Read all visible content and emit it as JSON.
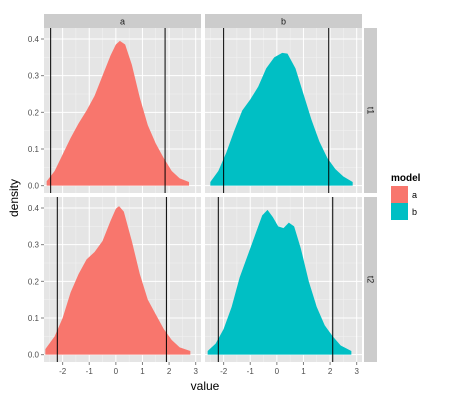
{
  "chart_data": {
    "type": "area",
    "xlabel": "value",
    "ylabel": "density",
    "xlim": [
      -2.7,
      3.2
    ],
    "ylim": [
      -0.02,
      0.43
    ],
    "x_ticks": [
      -2,
      -1,
      0,
      1,
      2,
      3
    ],
    "y_ticks": [
      0.0,
      0.1,
      0.2,
      0.3,
      0.4
    ],
    "x_tick_labels": [
      "-2",
      "-1",
      "0",
      "1",
      "2",
      "3"
    ],
    "y_tick_labels": [
      "0.0",
      "0.1",
      "0.2",
      "0.3",
      "0.4"
    ],
    "grid": true,
    "column_facets": [
      "a",
      "b"
    ],
    "row_facets": [
      "t1",
      "t2"
    ],
    "legend": {
      "title": "model",
      "position": "right",
      "entries": [
        {
          "label": "a",
          "color": "#F8766D"
        },
        {
          "label": "b",
          "color": "#00BFC4"
        }
      ]
    },
    "panels": [
      {
        "col": "a",
        "row": "t1",
        "model": "a",
        "color": "#F8766D",
        "vlines": [
          -2.45,
          1.85
        ],
        "series": [
          {
            "x": -2.6,
            "y": 0.012
          },
          {
            "x": -2.3,
            "y": 0.04
          },
          {
            "x": -2.0,
            "y": 0.085
          },
          {
            "x": -1.7,
            "y": 0.13
          },
          {
            "x": -1.4,
            "y": 0.17
          },
          {
            "x": -1.1,
            "y": 0.205
          },
          {
            "x": -0.8,
            "y": 0.245
          },
          {
            "x": -0.5,
            "y": 0.3
          },
          {
            "x": -0.2,
            "y": 0.355
          },
          {
            "x": 0.0,
            "y": 0.385
          },
          {
            "x": 0.15,
            "y": 0.395
          },
          {
            "x": 0.35,
            "y": 0.385
          },
          {
            "x": 0.6,
            "y": 0.33
          },
          {
            "x": 0.9,
            "y": 0.24
          },
          {
            "x": 1.2,
            "y": 0.165
          },
          {
            "x": 1.5,
            "y": 0.115
          },
          {
            "x": 1.8,
            "y": 0.075
          },
          {
            "x": 2.1,
            "y": 0.04
          },
          {
            "x": 2.4,
            "y": 0.02
          },
          {
            "x": 2.75,
            "y": 0.01
          }
        ]
      },
      {
        "col": "b",
        "row": "t1",
        "model": "b",
        "color": "#00BFC4",
        "vlines": [
          -2.0,
          1.95
        ],
        "series": [
          {
            "x": -2.5,
            "y": 0.01
          },
          {
            "x": -2.2,
            "y": 0.04
          },
          {
            "x": -1.9,
            "y": 0.09
          },
          {
            "x": -1.6,
            "y": 0.15
          },
          {
            "x": -1.3,
            "y": 0.205
          },
          {
            "x": -1.0,
            "y": 0.235
          },
          {
            "x": -0.7,
            "y": 0.27
          },
          {
            "x": -0.4,
            "y": 0.32
          },
          {
            "x": -0.1,
            "y": 0.35
          },
          {
            "x": 0.2,
            "y": 0.362
          },
          {
            "x": 0.4,
            "y": 0.36
          },
          {
            "x": 0.7,
            "y": 0.32
          },
          {
            "x": 1.0,
            "y": 0.25
          },
          {
            "x": 1.3,
            "y": 0.18
          },
          {
            "x": 1.6,
            "y": 0.12
          },
          {
            "x": 1.9,
            "y": 0.075
          },
          {
            "x": 2.2,
            "y": 0.045
          },
          {
            "x": 2.5,
            "y": 0.025
          },
          {
            "x": 2.85,
            "y": 0.01
          }
        ]
      },
      {
        "col": "a",
        "row": "t2",
        "model": "a",
        "color": "#F8766D",
        "vlines": [
          -2.2,
          1.9
        ],
        "series": [
          {
            "x": -2.65,
            "y": 0.015
          },
          {
            "x": -2.3,
            "y": 0.05
          },
          {
            "x": -2.0,
            "y": 0.1
          },
          {
            "x": -1.7,
            "y": 0.17
          },
          {
            "x": -1.4,
            "y": 0.22
          },
          {
            "x": -1.1,
            "y": 0.26
          },
          {
            "x": -0.8,
            "y": 0.28
          },
          {
            "x": -0.5,
            "y": 0.31
          },
          {
            "x": -0.2,
            "y": 0.365
          },
          {
            "x": 0.0,
            "y": 0.398
          },
          {
            "x": 0.12,
            "y": 0.405
          },
          {
            "x": 0.3,
            "y": 0.39
          },
          {
            "x": 0.6,
            "y": 0.31
          },
          {
            "x": 0.9,
            "y": 0.22
          },
          {
            "x": 1.2,
            "y": 0.15
          },
          {
            "x": 1.5,
            "y": 0.11
          },
          {
            "x": 1.8,
            "y": 0.07
          },
          {
            "x": 2.1,
            "y": 0.04
          },
          {
            "x": 2.4,
            "y": 0.02
          },
          {
            "x": 2.8,
            "y": 0.01
          }
        ]
      },
      {
        "col": "b",
        "row": "t2",
        "model": "b",
        "color": "#00BFC4",
        "vlines": [
          -2.2,
          2.1
        ],
        "series": [
          {
            "x": -2.6,
            "y": 0.01
          },
          {
            "x": -2.3,
            "y": 0.03
          },
          {
            "x": -2.0,
            "y": 0.07
          },
          {
            "x": -1.7,
            "y": 0.13
          },
          {
            "x": -1.4,
            "y": 0.21
          },
          {
            "x": -1.1,
            "y": 0.27
          },
          {
            "x": -0.8,
            "y": 0.33
          },
          {
            "x": -0.55,
            "y": 0.38
          },
          {
            "x": -0.35,
            "y": 0.395
          },
          {
            "x": -0.15,
            "y": 0.375
          },
          {
            "x": 0.05,
            "y": 0.35
          },
          {
            "x": 0.25,
            "y": 0.345
          },
          {
            "x": 0.45,
            "y": 0.36
          },
          {
            "x": 0.65,
            "y": 0.35
          },
          {
            "x": 0.9,
            "y": 0.29
          },
          {
            "x": 1.2,
            "y": 0.2
          },
          {
            "x": 1.5,
            "y": 0.13
          },
          {
            "x": 1.8,
            "y": 0.08
          },
          {
            "x": 2.1,
            "y": 0.05
          },
          {
            "x": 2.4,
            "y": 0.025
          },
          {
            "x": 2.8,
            "y": 0.01
          }
        ]
      }
    ]
  }
}
